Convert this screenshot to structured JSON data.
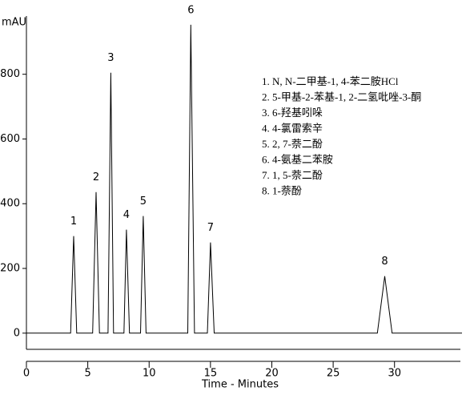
{
  "chart_data": {
    "type": "line",
    "y_label": "mAU",
    "x_label": "Time - Minutes",
    "x": [
      0,
      3.6,
      3.85,
      4.1,
      5.4,
      5.68,
      5.95,
      6.65,
      6.88,
      7.1,
      7.95,
      8.15,
      8.4,
      9.3,
      9.52,
      9.75,
      13.15,
      13.4,
      13.7,
      14.75,
      15.0,
      15.3,
      28.6,
      29.2,
      29.8,
      35.5
    ],
    "series": [
      {
        "color": "#000000",
        "values": [
          0,
          0,
          300,
          0,
          0,
          436,
          0,
          0,
          805,
          0,
          0,
          320,
          0,
          0,
          362,
          0,
          0,
          953,
          0,
          0,
          280,
          0,
          0,
          176,
          0,
          0
        ]
      }
    ],
    "peak_labels": [
      "1",
      "2",
      "3",
      "4",
      "5",
      "6",
      "7",
      "8"
    ],
    "legend_lines": [
      "1. N, N-二甲基-1, 4-苯二胺HCl",
      "2. 5-甲基-2-苯基-1, 2-二氢吡唑-3-酮",
      "3. 6-羟基吲哚",
      "4. 4-氯雷索辛",
      "5. 2, 7-萘二酚",
      "6. 4-氨基二苯胺",
      "7. 1, 5-萘二酚",
      "8. 1-萘酚"
    ],
    "xlim": [
      0,
      35.5
    ],
    "ylim": [
      -50,
      975
    ],
    "xticks": [
      0,
      5,
      10,
      15,
      20,
      25,
      30
    ],
    "yticks": [
      0,
      200,
      400,
      600,
      800
    ]
  }
}
